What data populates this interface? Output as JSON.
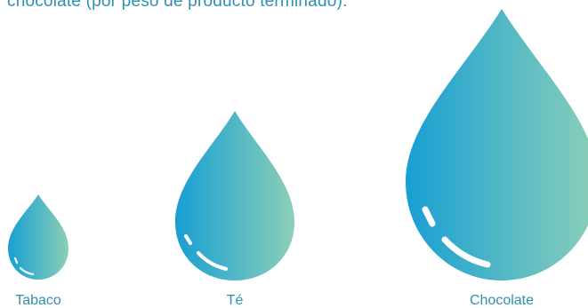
{
  "caption": "chocolate (por peso de producto terminado).",
  "chart_data": {
    "type": "bar",
    "categories": [
      "Tabaco",
      "Té",
      "Chocolate"
    ],
    "xlabel": "",
    "ylabel": ""
  },
  "colors": {
    "drop_left": "#179fd3",
    "drop_right": "#8ccfb8",
    "text": "#2f8fae",
    "highlight": "#ffffff"
  },
  "icons": {
    "drop": "water-drop-icon"
  }
}
